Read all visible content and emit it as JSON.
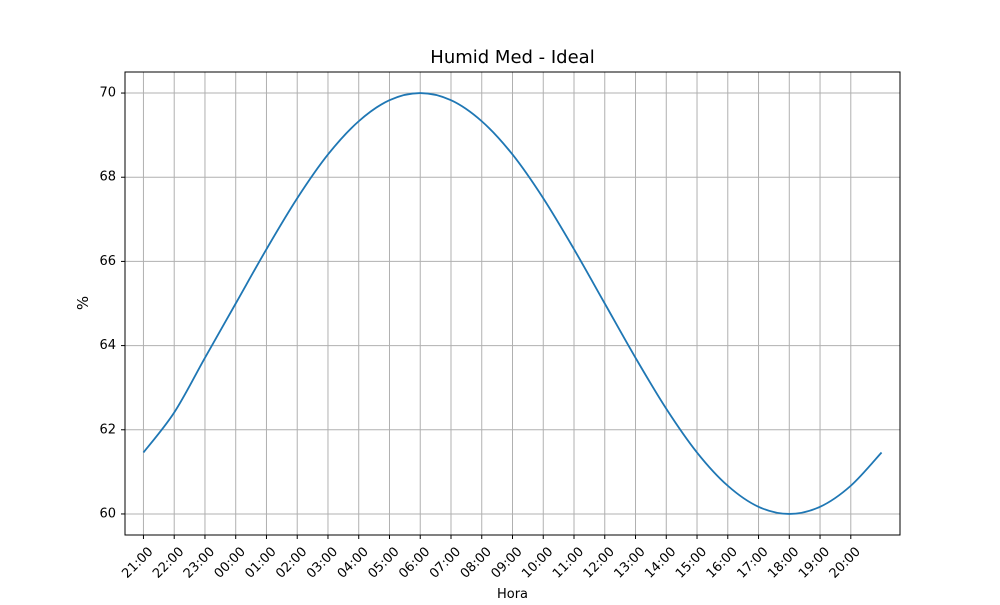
{
  "chart_data": {
    "type": "line",
    "title": "Humid Med - Ideal",
    "xlabel": "Hora",
    "ylabel": "%",
    "categories": [
      "21:00",
      "22:00",
      "23:00",
      "00:00",
      "01:00",
      "02:00",
      "03:00",
      "04:00",
      "05:00",
      "06:00",
      "07:00",
      "08:00",
      "09:00",
      "10:00",
      "11:00",
      "12:00",
      "13:00",
      "14:00",
      "15:00",
      "16:00",
      "17:00",
      "18:00",
      "19:00",
      "20:00"
    ],
    "y_ticks": [
      60,
      62,
      64,
      66,
      68,
      70
    ],
    "ylim": [
      59.5,
      70.5
    ],
    "grid": true,
    "series": [
      {
        "color": "#1f77b4",
        "points": [
          {
            "x": "21:00",
            "y": 61.46
          },
          {
            "x": "22:00",
            "y": 62.41
          },
          {
            "x": "23:00",
            "y": 63.71
          },
          {
            "x": "00:00",
            "y": 65.0
          },
          {
            "x": "01:00",
            "y": 66.29
          },
          {
            "x": "02:00",
            "y": 67.5
          },
          {
            "x": "03:00",
            "y": 68.54
          },
          {
            "x": "04:00",
            "y": 69.33
          },
          {
            "x": "05:00",
            "y": 69.83
          },
          {
            "x": "06:00",
            "y": 70.0
          },
          {
            "x": "07:00",
            "y": 69.83
          },
          {
            "x": "08:00",
            "y": 69.33
          },
          {
            "x": "09:00",
            "y": 68.54
          },
          {
            "x": "10:00",
            "y": 67.5
          },
          {
            "x": "11:00",
            "y": 66.29
          },
          {
            "x": "12:00",
            "y": 65.0
          },
          {
            "x": "13:00",
            "y": 63.71
          },
          {
            "x": "14:00",
            "y": 62.5
          },
          {
            "x": "15:00",
            "y": 61.46
          },
          {
            "x": "16:00",
            "y": 60.67
          },
          {
            "x": "17:00",
            "y": 60.17
          },
          {
            "x": "18:00",
            "y": 60.0
          },
          {
            "x": "19:00",
            "y": 60.17
          },
          {
            "x": "20:00",
            "y": 60.67
          },
          {
            "x": "21:00",
            "y": 61.46
          }
        ]
      }
    ]
  }
}
